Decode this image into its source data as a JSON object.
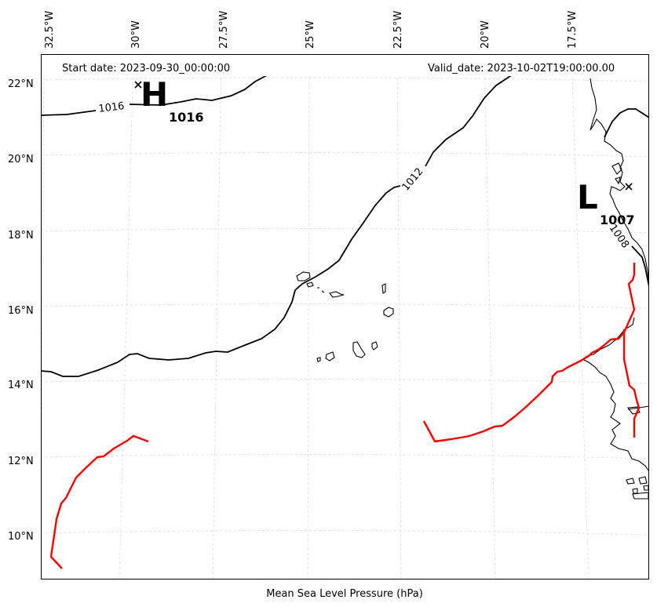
{
  "figure": {
    "start_date": "Start date: 2023-09-30_00:00:00",
    "valid_date": "Valid_date: 2023-10-02T19:00:00.00",
    "xlabel": "Mean Sea Level Pressure (hPa)"
  },
  "axes": {
    "lon_labels": [
      "32.5°W",
      "30°W",
      "27.5°W",
      "25°W",
      "22.5°W",
      "20°W",
      "17.5°W"
    ],
    "lat_labels": [
      "22°N",
      "20°N",
      "18°N",
      "16°N",
      "14°N",
      "12°N",
      "10°N"
    ]
  },
  "pressure_centers": [
    {
      "type": "high",
      "letter": "H",
      "value": "1016"
    },
    {
      "type": "low",
      "letter": "L",
      "value": "1007"
    }
  ],
  "contour_labels": [
    "1016",
    "1012",
    "1008"
  ],
  "colors": {
    "track": "#ff0000",
    "coast": "#000000",
    "isobar": "#000000",
    "grid": "#d9d9d9"
  }
}
